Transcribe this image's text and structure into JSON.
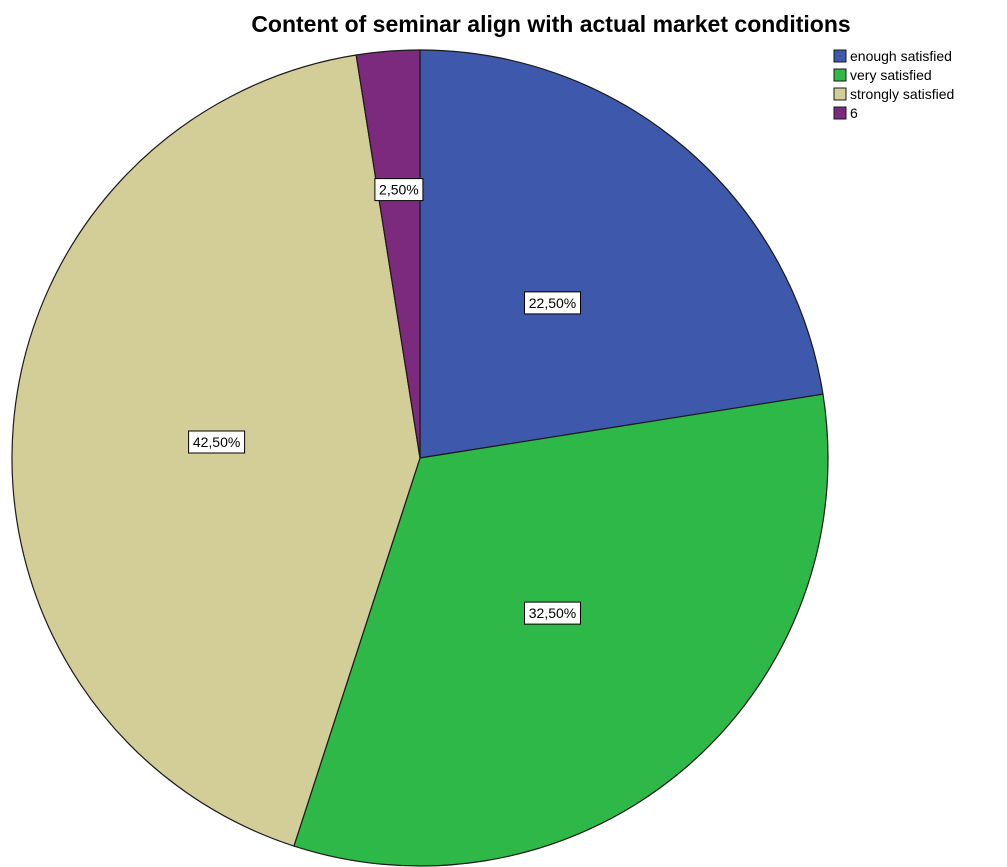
{
  "chart_data": {
    "type": "pie",
    "title": "Content of seminar align with actual market conditions",
    "legend_position": "top-right",
    "slices": [
      {
        "name": "enough satisfied",
        "value": 22.5,
        "label": "22,50%",
        "color": "#3e58ac"
      },
      {
        "name": "very satisfied",
        "value": 32.5,
        "label": "32,50%",
        "color": "#2eb848"
      },
      {
        "name": "strongly satisfied",
        "value": 42.5,
        "label": "42,50%",
        "color": "#d3ce97"
      },
      {
        "name": "6",
        "value": 2.5,
        "label": "2,50%",
        "color": "#7c2a7e"
      }
    ]
  }
}
